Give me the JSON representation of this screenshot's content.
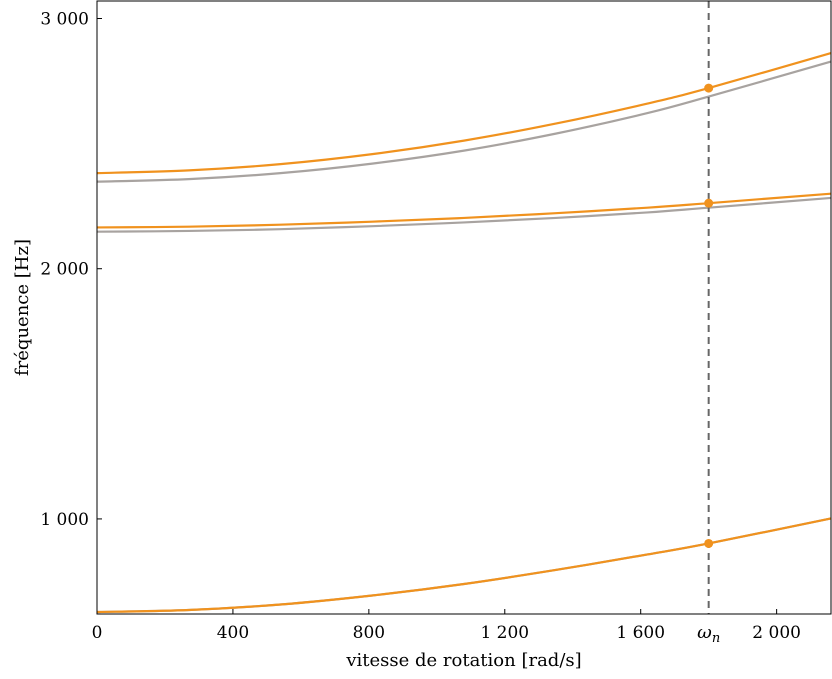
{
  "chart_data": {
    "type": "line",
    "xlabel": "vitesse de rotation [rad/s]",
    "ylabel": "fréquence [Hz]",
    "xlim": [
      0,
      2160
    ],
    "ylim": [
      620,
      3070
    ],
    "xticks": [
      {
        "value": 0,
        "label": "0"
      },
      {
        "value": 400,
        "label": "400"
      },
      {
        "value": 800,
        "label": "800"
      },
      {
        "value": 1200,
        "label": "1 200"
      },
      {
        "value": 1600,
        "label": "1 600"
      },
      {
        "value": 2000,
        "label": "2 000"
      }
    ],
    "yticks": [
      {
        "value": 1000,
        "label": "1 000"
      },
      {
        "value": 2000,
        "label": "2 000"
      },
      {
        "value": 3000,
        "label": "3 000"
      }
    ],
    "marker_line": {
      "x": 1800,
      "label": "ω",
      "sub": "n",
      "style": "dashed",
      "color": "#666666"
    },
    "colors": {
      "orange": "#f0921e",
      "gray": "#a8a3a0"
    },
    "x": [
      0,
      270,
      540,
      810,
      1080,
      1350,
      1620,
      1800,
      2160
    ],
    "series": [
      {
        "values": [
          2382,
          2393,
          2418,
          2458,
          2512,
          2580,
          2660,
          2722,
          2862
        ],
        "color": "orange"
      },
      {
        "values": [
          2348,
          2358,
          2382,
          2420,
          2472,
          2540,
          2622,
          2688,
          2828
        ],
        "color": "gray"
      },
      {
        "values": [
          2165,
          2168,
          2176,
          2188,
          2203,
          2222,
          2244,
          2262,
          2300
        ],
        "color": "orange"
      },
      {
        "values": [
          2148,
          2151,
          2158,
          2170,
          2185,
          2203,
          2225,
          2244,
          2283
        ],
        "color": "gray"
      },
      {
        "values": [
          1628,
          1636,
          1658,
          1694,
          1740,
          1796,
          1858,
          1902,
          2002
        ],
        "color": "gray",
        "y_offset": -1000
      },
      {
        "values": [
          1628,
          1636,
          1658,
          1694,
          1740,
          1796,
          1858,
          1902,
          2002
        ],
        "color": "orange",
        "y_offset": -1000
      }
    ],
    "points": [
      {
        "x": 1800,
        "y": 2722
      },
      {
        "x": 1800,
        "y": 2262
      },
      {
        "x": 1800,
        "y": 902
      }
    ]
  }
}
